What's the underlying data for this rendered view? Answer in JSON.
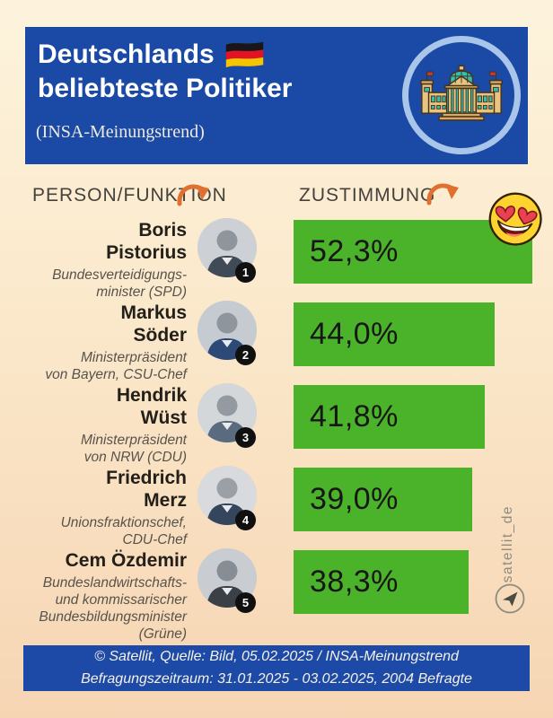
{
  "header": {
    "title_line1": "Deutschlands",
    "title_line2": "beliebteste Politiker",
    "subtitle": "(INSA-Meinungstrend)",
    "flag_icon": "german-flag",
    "emblem_icon": "reichstag-building"
  },
  "columns": {
    "person": "PERSON/FUNKTION",
    "approval": "ZUSTIMMUNG"
  },
  "decor": {
    "emoji": "heart-eyes-emoji",
    "arrow_icon": "curved-orange-arrow"
  },
  "rows": [
    {
      "rank": "1",
      "name": "Boris\nPistorius",
      "role": "Bundesverteidigungs-\nminister (SPD)",
      "value_label": "52,3%"
    },
    {
      "rank": "2",
      "name": "Markus\nSöder",
      "role": "Ministerpräsident\nvon Bayern, CSU-Chef",
      "value_label": "44,0%"
    },
    {
      "rank": "3",
      "name": "Hendrik\nWüst",
      "role": "Ministerpräsident\nvon NRW (CDU)",
      "value_label": "41,8%"
    },
    {
      "rank": "4",
      "name": "Friedrich\nMerz",
      "role": "Unionsfraktionschef,\nCDU-Chef",
      "value_label": "39,0%"
    },
    {
      "rank": "5",
      "name": "Cem Özdemir",
      "role": "Bundeslandwirtschafts-\nund kommissarischer\nBundesbildungsminister\n(Grüne)",
      "value_label": "38,3%"
    }
  ],
  "chart_data": {
    "type": "bar",
    "orientation": "horizontal",
    "title": "Deutschlands beliebteste Politiker",
    "subtitle": "(INSA-Meinungstrend)",
    "xlabel": "ZUSTIMMUNG",
    "ylabel": "PERSON/FUNKTION",
    "categories": [
      "Boris Pistorius",
      "Markus Söder",
      "Hendrik Wüst",
      "Friedrich Merz",
      "Cem Özdemir"
    ],
    "values": [
      52.3,
      44.0,
      41.8,
      39.0,
      38.3
    ],
    "value_labels": [
      "52,3%",
      "44,0%",
      "41,8%",
      "39,0%",
      "38,3%"
    ],
    "xlim": [
      0,
      55
    ],
    "grid": false,
    "legend": "none",
    "bar_color": "#4bb32a"
  },
  "watermark": {
    "handle": "satellit_de",
    "logo_icon": "paper-plane"
  },
  "footer": {
    "line1": "© Satellit, Quelle: Bild, 05.02.2025 / INSA-Meinungstrend",
    "line2": "Befragungszeitraum: 31.01.2025 - 03.02.2025, 2004 Befragte"
  },
  "colors": {
    "header_blue": "#1a4aa5",
    "footer_blue": "#1d4aa6",
    "bar_green": "#4bb32a",
    "arrow_orange": "#e0702f",
    "ring_light_blue": "#a9c6ea",
    "background_top": "#fdf3dc",
    "background_bottom": "#f6d5b3",
    "badge_black": "#101010"
  }
}
